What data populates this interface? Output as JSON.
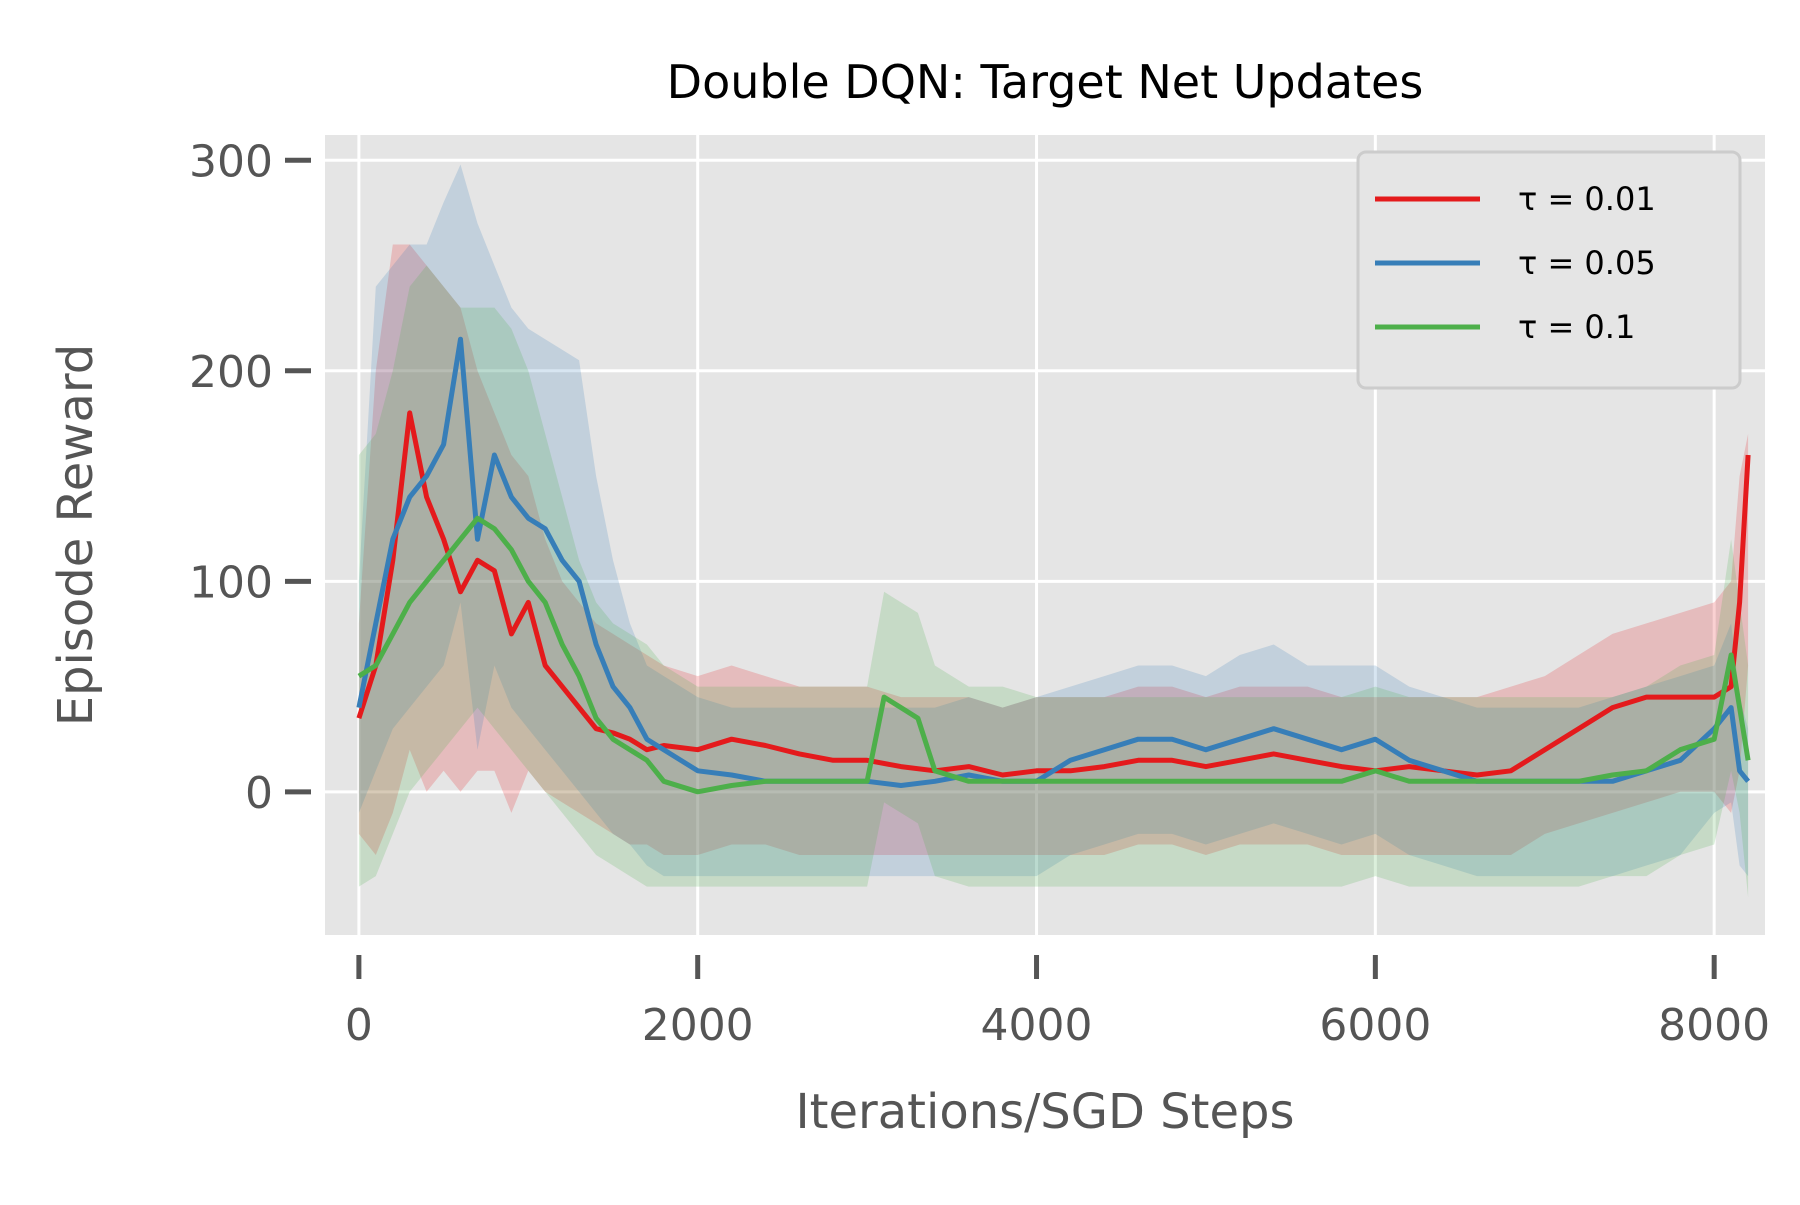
{
  "chart_data": {
    "type": "line",
    "title": "Double DQN: Target Net Updates",
    "xlabel": "Iterations/SGD Steps",
    "ylabel": "Episode Reward",
    "xlim": [
      -200,
      8300
    ],
    "ylim": [
      -68,
      312
    ],
    "xticks": [
      0,
      2000,
      4000,
      6000,
      8000
    ],
    "xtick_labels": [
      "0",
      "2000",
      "4000",
      "6000",
      "8000"
    ],
    "yticks": [
      0,
      100,
      200,
      300
    ],
    "ytick_labels": [
      "0",
      "100",
      "200",
      "300"
    ],
    "grid": true,
    "legend_position": "top-right",
    "series": [
      {
        "name": "τ = 0.01",
        "color": "#e41a1c",
        "x": [
          0,
          100,
          200,
          300,
          400,
          500,
          600,
          700,
          800,
          900,
          1000,
          1100,
          1200,
          1300,
          1400,
          1500,
          1600,
          1700,
          1800,
          2000,
          2200,
          2400,
          2600,
          2800,
          3000,
          3200,
          3400,
          3600,
          3800,
          4000,
          4200,
          4400,
          4600,
          4800,
          5000,
          5200,
          5400,
          5600,
          5800,
          6000,
          6200,
          6400,
          6600,
          6800,
          7000,
          7200,
          7400,
          7600,
          7800,
          8000,
          8100,
          8150,
          8200
        ],
        "values": [
          35,
          60,
          110,
          180,
          140,
          120,
          95,
          110,
          105,
          75,
          90,
          60,
          50,
          40,
          30,
          28,
          25,
          20,
          22,
          20,
          25,
          22,
          18,
          15,
          15,
          12,
          10,
          12,
          8,
          10,
          10,
          12,
          15,
          15,
          12,
          15,
          18,
          15,
          12,
          10,
          12,
          10,
          8,
          10,
          20,
          30,
          40,
          45,
          45,
          45,
          50,
          90,
          160
        ],
        "upper": [
          80,
          200,
          260,
          260,
          250,
          240,
          230,
          200,
          180,
          160,
          150,
          120,
          100,
          90,
          80,
          75,
          70,
          65,
          60,
          55,
          60,
          55,
          50,
          50,
          50,
          45,
          45,
          45,
          40,
          45,
          45,
          45,
          50,
          50,
          45,
          50,
          50,
          50,
          45,
          45,
          45,
          45,
          45,
          50,
          55,
          65,
          75,
          80,
          85,
          90,
          100,
          150,
          170
        ],
        "lower": [
          -20,
          -30,
          -10,
          20,
          0,
          10,
          0,
          10,
          10,
          -10,
          10,
          0,
          -5,
          -10,
          -15,
          -20,
          -25,
          -25,
          -30,
          -30,
          -25,
          -25,
          -30,
          -30,
          -30,
          -30,
          -30,
          -30,
          -30,
          -30,
          -30,
          -30,
          -25,
          -25,
          -30,
          -25,
          -25,
          -25,
          -30,
          -30,
          -30,
          -30,
          -30,
          -30,
          -20,
          -15,
          -10,
          -5,
          0,
          0,
          -10,
          10,
          60
        ]
      },
      {
        "name": "τ = 0.05",
        "color": "#377eb8",
        "x": [
          0,
          100,
          200,
          300,
          400,
          500,
          600,
          700,
          800,
          900,
          1000,
          1100,
          1200,
          1300,
          1400,
          1500,
          1600,
          1700,
          1800,
          2000,
          2200,
          2400,
          2600,
          2800,
          3000,
          3200,
          3400,
          3600,
          3800,
          4000,
          4200,
          4400,
          4600,
          4800,
          5000,
          5200,
          5400,
          5600,
          5800,
          6000,
          6200,
          6400,
          6600,
          6800,
          7000,
          7200,
          7400,
          7600,
          7800,
          8000,
          8100,
          8150,
          8200
        ],
        "values": [
          40,
          80,
          120,
          140,
          150,
          165,
          215,
          120,
          160,
          140,
          130,
          125,
          110,
          100,
          70,
          50,
          40,
          25,
          20,
          10,
          8,
          5,
          5,
          5,
          5,
          3,
          5,
          8,
          5,
          5,
          15,
          20,
          25,
          25,
          20,
          25,
          30,
          25,
          20,
          25,
          15,
          10,
          5,
          5,
          5,
          5,
          5,
          10,
          15,
          30,
          40,
          10,
          5
        ],
        "upper": [
          100,
          240,
          250,
          260,
          260,
          280,
          298,
          270,
          250,
          230,
          220,
          215,
          210,
          205,
          150,
          110,
          80,
          60,
          55,
          45,
          40,
          40,
          40,
          40,
          40,
          40,
          40,
          45,
          40,
          45,
          50,
          55,
          60,
          60,
          55,
          65,
          70,
          60,
          60,
          60,
          50,
          45,
          40,
          40,
          40,
          40,
          45,
          50,
          55,
          60,
          80,
          45,
          30
        ],
        "lower": [
          -10,
          10,
          30,
          40,
          50,
          60,
          90,
          20,
          60,
          40,
          30,
          20,
          10,
          0,
          -10,
          -20,
          -25,
          -35,
          -40,
          -40,
          -40,
          -40,
          -40,
          -40,
          -40,
          -40,
          -40,
          -40,
          -40,
          -40,
          -30,
          -25,
          -20,
          -20,
          -25,
          -20,
          -15,
          -20,
          -25,
          -20,
          -30,
          -35,
          -40,
          -40,
          -40,
          -40,
          -40,
          -35,
          -30,
          -10,
          -5,
          -35,
          -40
        ]
      },
      {
        "name": "τ = 0.1",
        "color": "#4daf4a",
        "x": [
          0,
          100,
          200,
          300,
          400,
          500,
          600,
          700,
          800,
          900,
          1000,
          1100,
          1200,
          1300,
          1400,
          1500,
          1600,
          1700,
          1800,
          2000,
          2200,
          2400,
          2600,
          2800,
          3000,
          3100,
          3200,
          3300,
          3400,
          3600,
          3800,
          4000,
          4200,
          4400,
          4600,
          4800,
          5000,
          5200,
          5400,
          5600,
          5800,
          6000,
          6200,
          6400,
          6600,
          6800,
          7000,
          7200,
          7400,
          7600,
          7800,
          8000,
          8100,
          8150,
          8200
        ],
        "values": [
          55,
          60,
          75,
          90,
          100,
          110,
          120,
          130,
          125,
          115,
          100,
          90,
          70,
          55,
          35,
          25,
          20,
          15,
          5,
          0,
          3,
          5,
          5,
          5,
          5,
          45,
          40,
          35,
          10,
          5,
          5,
          5,
          5,
          5,
          5,
          5,
          5,
          5,
          5,
          5,
          5,
          10,
          5,
          5,
          5,
          5,
          5,
          5,
          8,
          10,
          20,
          25,
          65,
          40,
          15
        ],
        "upper": [
          160,
          170,
          200,
          240,
          250,
          240,
          230,
          230,
          230,
          220,
          200,
          170,
          140,
          110,
          90,
          80,
          75,
          70,
          60,
          50,
          50,
          50,
          50,
          50,
          50,
          95,
          90,
          85,
          60,
          50,
          50,
          45,
          45,
          45,
          45,
          45,
          45,
          45,
          45,
          45,
          45,
          50,
          45,
          45,
          45,
          45,
          45,
          45,
          45,
          50,
          60,
          65,
          120,
          90,
          60
        ],
        "lower": [
          -45,
          -40,
          -20,
          0,
          10,
          20,
          30,
          40,
          30,
          20,
          10,
          0,
          -10,
          -20,
          -30,
          -35,
          -40,
          -45,
          -45,
          -45,
          -45,
          -45,
          -45,
          -45,
          -45,
          -5,
          -10,
          -15,
          -40,
          -45,
          -45,
          -45,
          -45,
          -45,
          -45,
          -45,
          -45,
          -45,
          -45,
          -45,
          -45,
          -40,
          -45,
          -45,
          -45,
          -45,
          -45,
          -45,
          -40,
          -40,
          -30,
          -25,
          10,
          -10,
          -50
        ]
      }
    ]
  }
}
